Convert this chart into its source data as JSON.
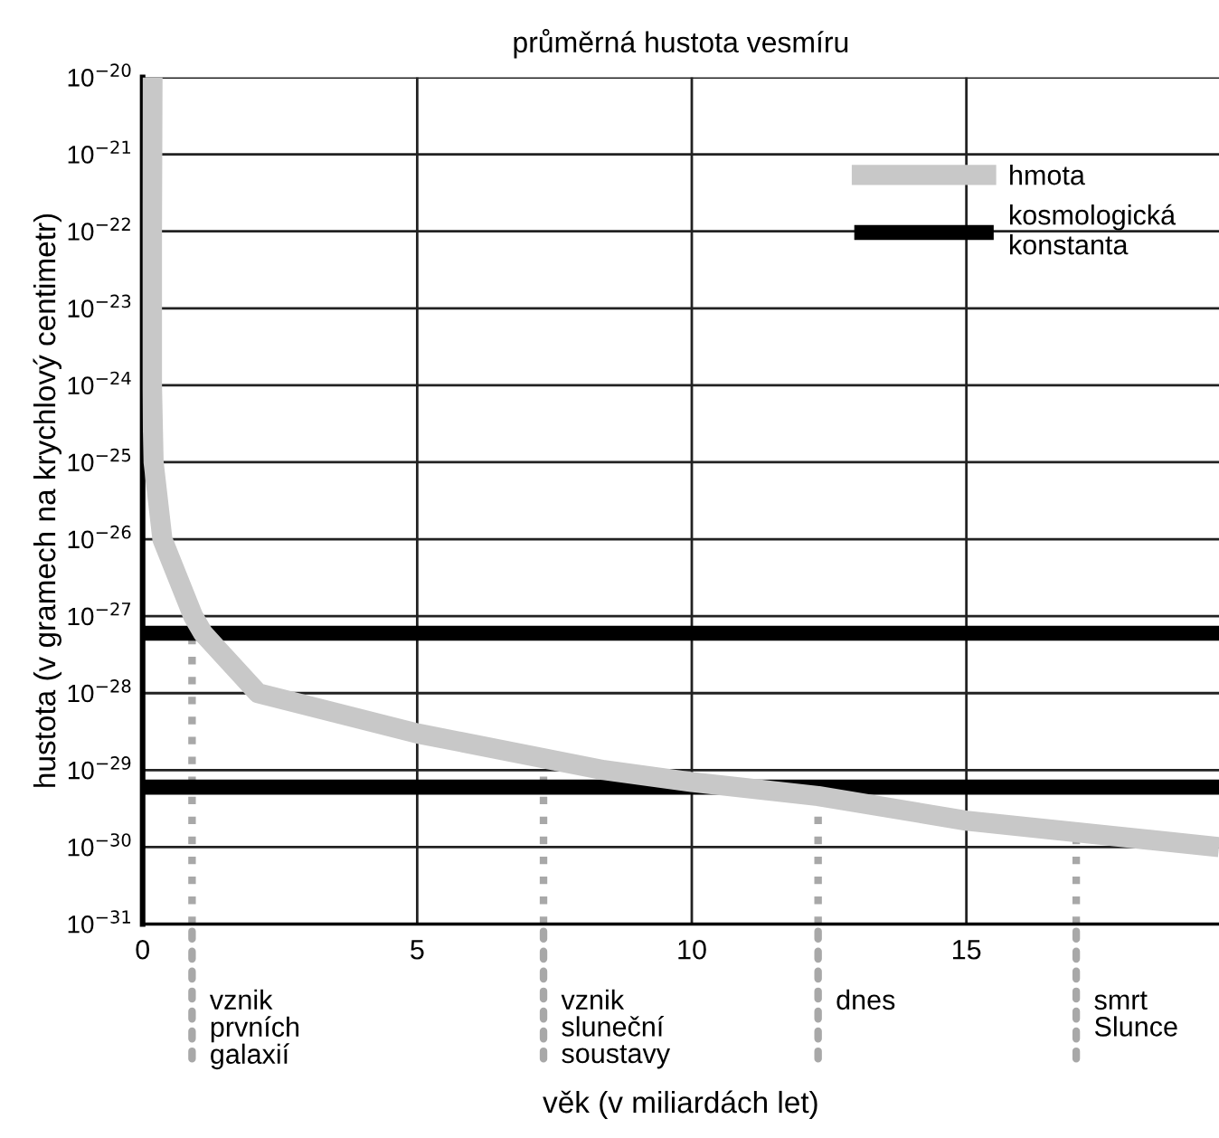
{
  "chart_data": {
    "type": "line",
    "title": "průměrná hustota vesmíru",
    "xlabel": "věk (v miliardách let)",
    "ylabel": "hustota (v gramech na krychlový centimetr)",
    "log": "y",
    "xlim": [
      0,
      19.6
    ],
    "xticks": [
      0,
      5,
      10,
      15
    ],
    "ylim": [
      1e-31,
      1e-20
    ],
    "yticks": [
      {
        "value": 1e-20,
        "label": "10$^{−20}$"
      },
      {
        "value": 1e-21,
        "label": "10$^{−21}$"
      },
      {
        "value": 1e-22,
        "label": "10$^{−22}$"
      },
      {
        "value": 1e-23,
        "label": "10$^{−23}$"
      },
      {
        "value": 1e-24,
        "label": "10$^{−24}$"
      },
      {
        "value": 1e-25,
        "label": "10$^{−25}$"
      },
      {
        "value": 1e-26,
        "label": "10$^{−26}$"
      },
      {
        "value": 1e-27,
        "label": "10$^{−27}$"
      },
      {
        "value": 1e-28,
        "label": "10$^{−28}$"
      },
      {
        "value": 1e-29,
        "label": "10$^{−29}$"
      },
      {
        "value": 1e-30,
        "label": "10$^{−30}$"
      },
      {
        "value": 1e-31,
        "label": "10$^{−31}$"
      }
    ],
    "grid": true,
    "legend": "top right",
    "marker": "none",
    "line_style": "solid",
    "series": [
      {
        "name": "hmota",
        "color": "#c8c8c8",
        "x": [
          0.18,
          0.17,
          0.17,
          0.2,
          0.36,
          0.92,
          1.1,
          2.1,
          5,
          8.4,
          10,
          12.3,
          15,
          19.6
        ],
        "values": [
          1e-20,
          1e-22,
          1e-24,
          1e-25,
          1e-26,
          1e-27,
          6e-28,
          1e-28,
          3e-29,
          1e-29,
          7e-30,
          4.6e-30,
          2.2e-30,
          1e-30
        ]
      },
      {
        "name": "kosmologická\nkonstanta",
        "color": "#000000",
        "x": [
          0,
          19.6
        ],
        "values": [
          6e-28,
          6e-28
        ]
      },
      {
        "color": "#000000",
        "x": [
          0,
          19.6
        ],
        "values": [
          6e-30,
          6e-30
        ]
      }
    ],
    "ref_lines": [
      {
        "axis": "x",
        "value": 0.9,
        "label": "vznik\nprvních\ngalaxií",
        "color": "#a8a8a8",
        "line_style": "dotted"
      },
      {
        "axis": "x",
        "value": 7.3,
        "label": "vznik\nsluneční\nsoustavy",
        "color": "#a8a8a8",
        "line_style": "dotted"
      },
      {
        "axis": "x",
        "value": 12.3,
        "label": "dnes",
        "color": "#a8a8a8",
        "line_style": "dotted"
      },
      {
        "axis": "x",
        "value": 17,
        "label": "smrt\nSlunce",
        "color": "#a8a8a8",
        "line_style": "dotted"
      }
    ]
  }
}
